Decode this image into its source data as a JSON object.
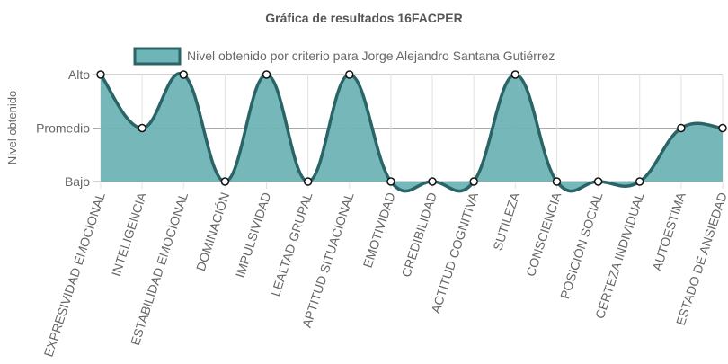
{
  "chart_data": {
    "type": "line",
    "title": "Gráfica de resultados 16FACPER",
    "y_label": "Nivel obtenido",
    "categories": [
      "EXPRESIVIDAD EMOCIONAL",
      "INTELIGENCIA",
      "ESTABILIDAD EMOCIONAL",
      "DOMINACIÓN",
      "IMPULSIVIDAD",
      "LEALTAD GRUPAL",
      "APTITUD SITUACIONAL",
      "EMOTIVIDAD",
      "CREDIBILIDAD",
      "ACTITUD COGNITIVA",
      "SUTILEZA",
      "CONSCIENCIA",
      "POSICIÓN SOCIAL",
      "CERTEZA INDIVIDUAL",
      "AUTOESTIMA",
      "ESTADO DE ANSIEDAD"
    ],
    "series": [
      {
        "name": "Nivel obtenido por criterio para Jorge Alejandro Santana Gutiérrez",
        "color": "#2a6466",
        "fill": "#6fb4b6",
        "values": [
          2,
          1,
          2,
          0,
          2,
          0,
          2,
          0,
          0,
          0,
          2,
          0,
          0,
          0,
          1,
          1
        ]
      }
    ],
    "ylim": [
      0,
      2
    ],
    "yticks": [
      {
        "value": 0,
        "label": "Bajo"
      },
      {
        "value": 1,
        "label": "Promedio"
      },
      {
        "value": 2,
        "label": "Alto"
      }
    ],
    "grid": true,
    "legend": "top"
  }
}
